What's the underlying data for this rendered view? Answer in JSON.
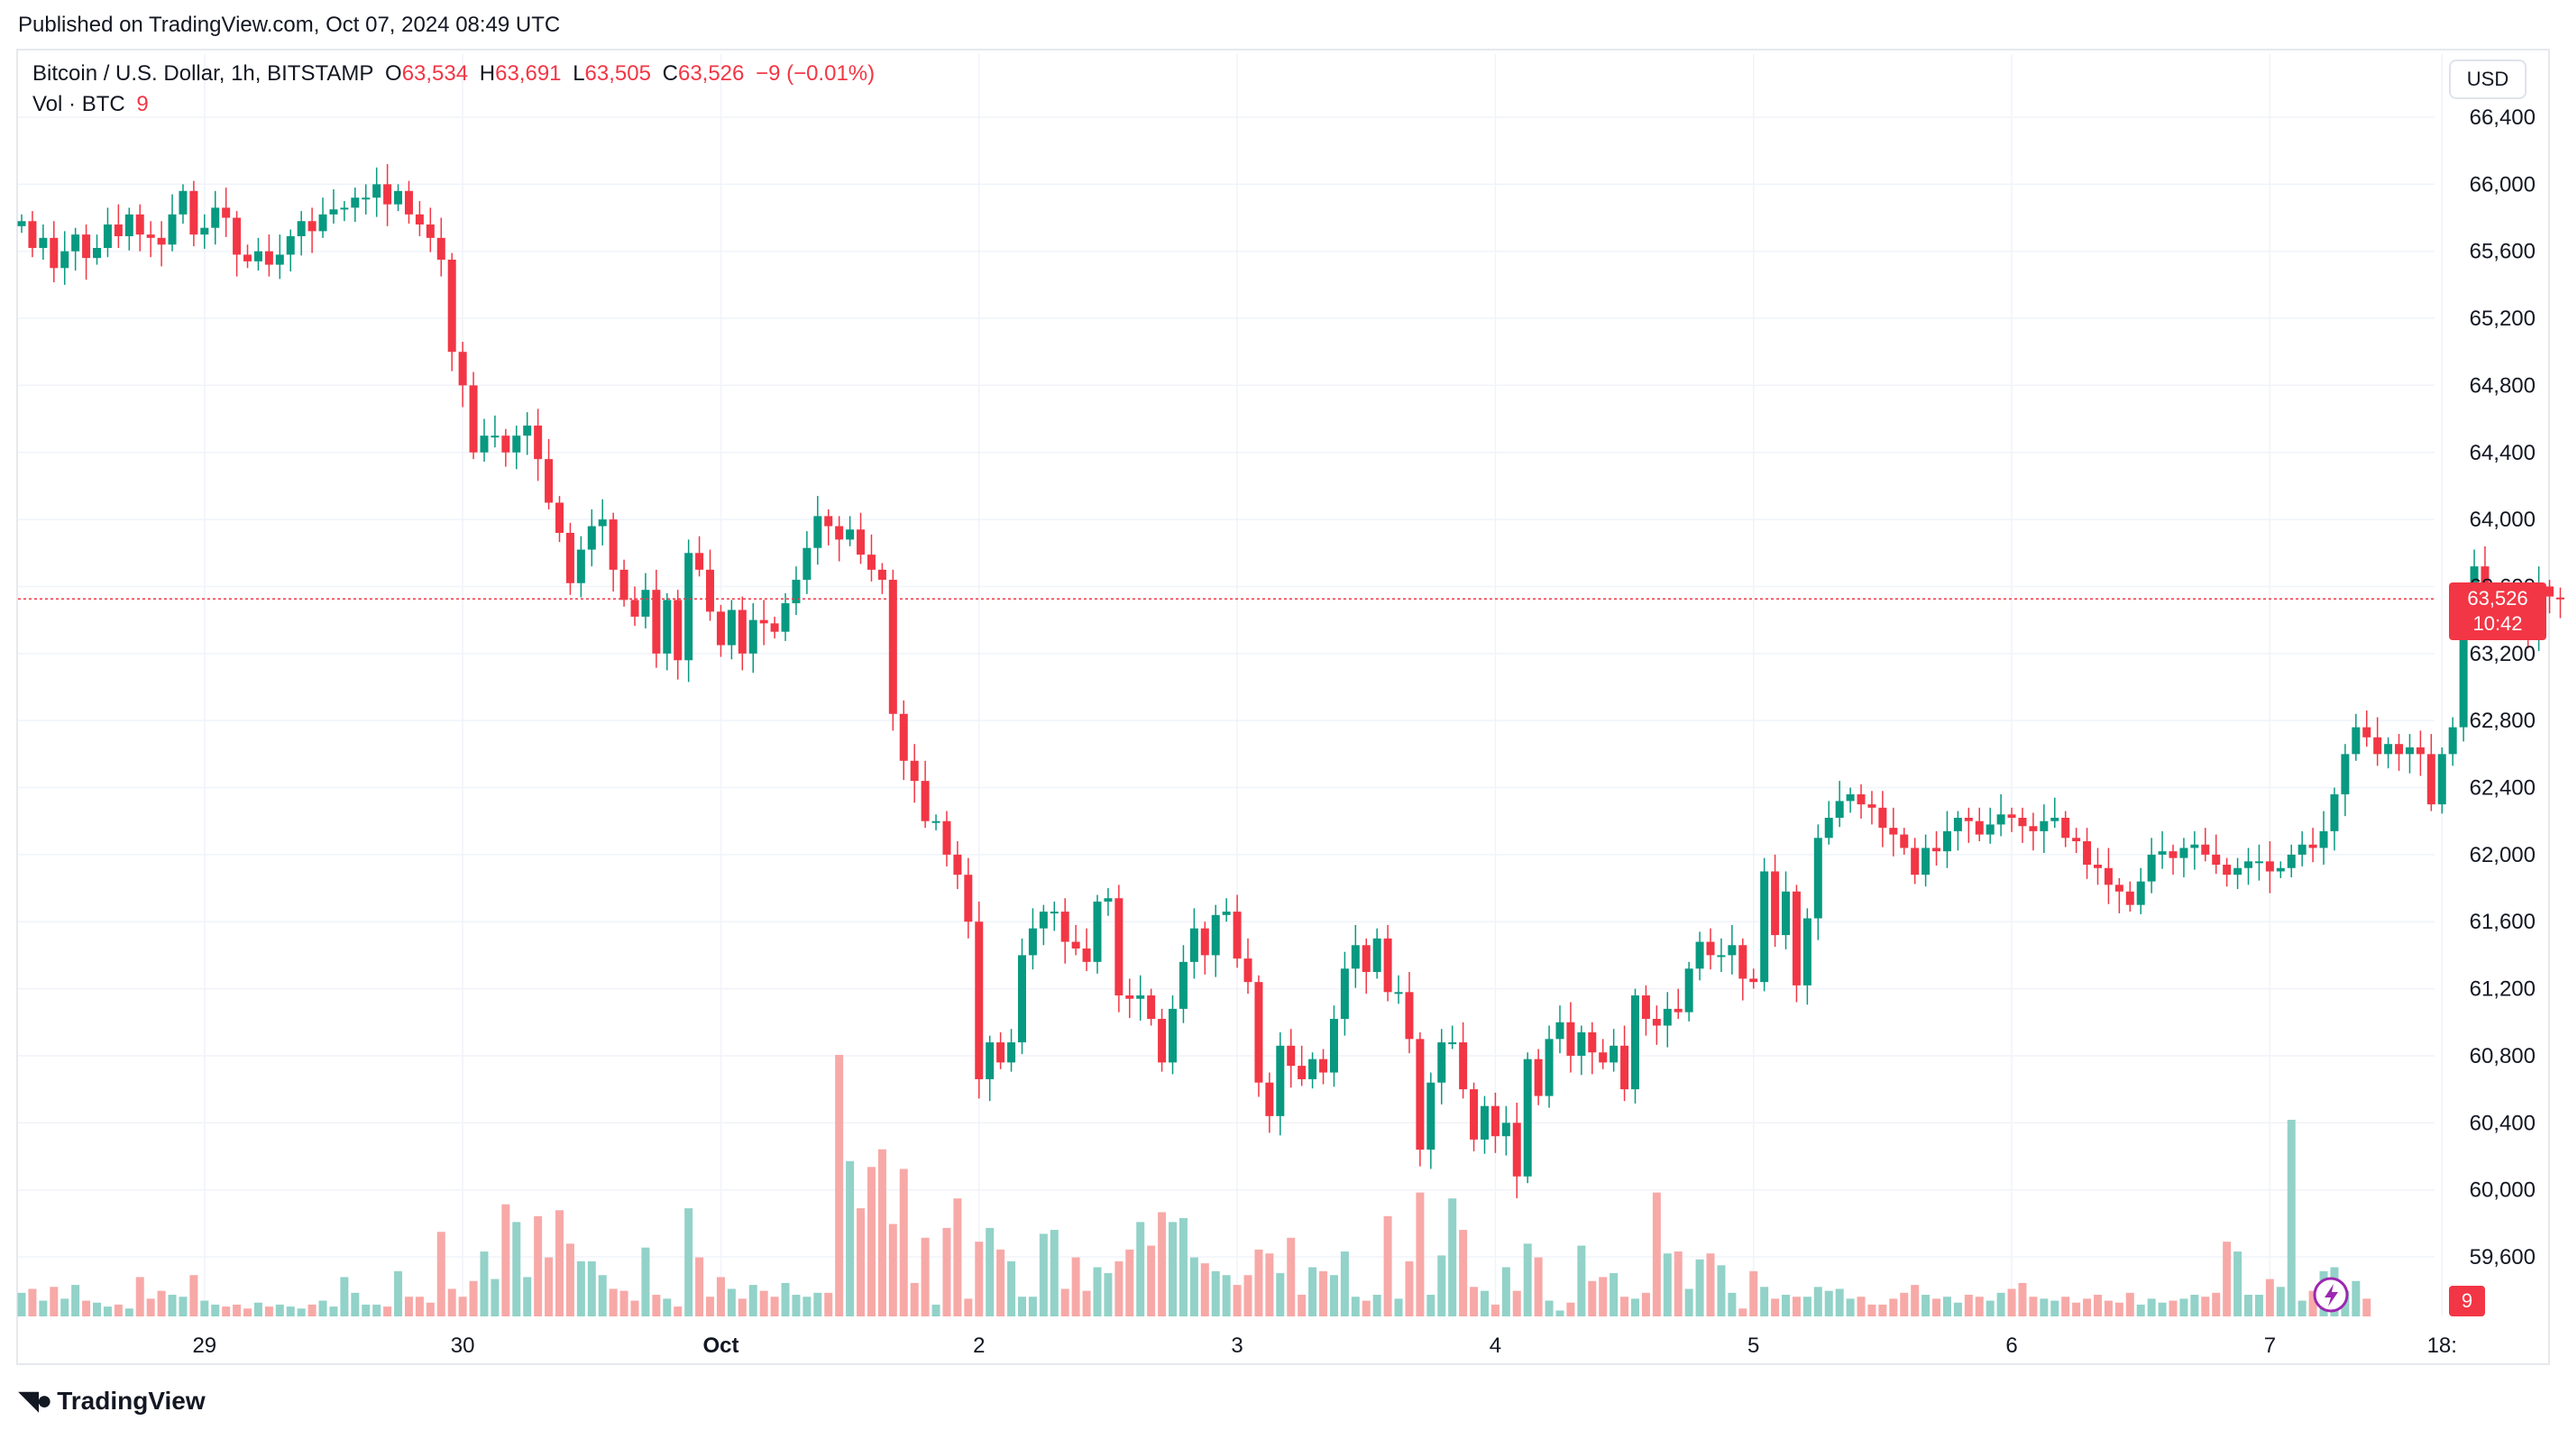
{
  "header": {
    "published": "Published on TradingView.com, Oct 07, 2024 08:49 UTC"
  },
  "legend": {
    "symbol": "Bitcoin / U.S. Dollar, 1h, BITSTAMP",
    "open_label": "O",
    "open": "63,534",
    "high_label": "H",
    "high": "63,691",
    "low_label": "L",
    "low": "63,505",
    "close_label": "C",
    "close": "63,526",
    "change": "−9 (−0.01%)",
    "volume_label": "Vol · BTC",
    "volume": "9"
  },
  "axis": {
    "currency": "USD",
    "price_badge": "63,526",
    "countdown": "10:42",
    "volume_badge": "9"
  },
  "footer": {
    "brand": "TradingView"
  },
  "colors": {
    "up": "#089981",
    "down": "#f23645",
    "up_vol": "#92d2c8",
    "down_vol": "#f7a9a7",
    "grid": "#f0f3fa"
  },
  "chart_data": {
    "type": "candlestick",
    "ylim": [
      59200,
      66600
    ],
    "y_ticks": [
      66400,
      66000,
      65600,
      65200,
      64800,
      64400,
      64000,
      63600,
      63200,
      62800,
      62400,
      62000,
      61600,
      61200,
      60800,
      60400,
      60000,
      59600
    ],
    "y_tick_labels": [
      "66,400",
      "66,000",
      "65,600",
      "65,200",
      "64,800",
      "64,400",
      "64,000",
      "63,600",
      "63,200",
      "62,800",
      "62,400",
      "62,000",
      "61,600",
      "61,200",
      "60,800",
      "60,400",
      "60,000",
      "59,600"
    ],
    "x_tick_labels": [
      {
        "label": "29",
        "bar": 17,
        "bold": false
      },
      {
        "label": "30",
        "bar": 41,
        "bold": false
      },
      {
        "label": "Oct",
        "bar": 65,
        "bold": true
      },
      {
        "label": "2",
        "bar": 89,
        "bold": false
      },
      {
        "label": "3",
        "bar": 113,
        "bold": false
      },
      {
        "label": "4",
        "bar": 137,
        "bold": false
      },
      {
        "label": "5",
        "bar": 161,
        "bold": false
      },
      {
        "label": "6",
        "bar": 185,
        "bold": false
      },
      {
        "label": "7",
        "bar": 209,
        "bold": false
      },
      {
        "label": "18:",
        "bar": 225,
        "bold": false
      }
    ],
    "last_price": 63526,
    "close": [
      65780,
      65620,
      65680,
      65500,
      65600,
      65700,
      65560,
      65620,
      65760,
      65690,
      65820,
      65700,
      65680,
      65640,
      65820,
      65960,
      65700,
      65740,
      65860,
      65800,
      65580,
      65540,
      65600,
      65520,
      65580,
      65690,
      65780,
      65720,
      65820,
      65850,
      65860,
      65920,
      65920,
      66000,
      65880,
      65960,
      65820,
      65760,
      65680,
      65550,
      65000,
      64800,
      64400,
      64500,
      64500,
      64400,
      64500,
      64560,
      64360,
      64100,
      63920,
      63620,
      63820,
      63960,
      64000,
      63700,
      63520,
      63420,
      63580,
      63200,
      63520,
      63160,
      63800,
      63700,
      63450,
      63250,
      63460,
      63200,
      63400,
      63380,
      63330,
      63500,
      63640,
      63830,
      64020,
      63960,
      63880,
      63940,
      63790,
      63700,
      63640,
      62840,
      62560,
      62440,
      62200,
      62200,
      62000,
      61880,
      61600,
      60660,
      60880,
      60760,
      60880,
      61400,
      61560,
      61660,
      61660,
      61480,
      61440,
      61360,
      61720,
      61740,
      61160,
      61140,
      61160,
      61020,
      60760,
      61080,
      61360,
      61560,
      61400,
      61640,
      61660,
      61380,
      61240,
      60640,
      60440,
      60860,
      60740,
      60660,
      60780,
      60700,
      61020,
      61320,
      61460,
      61300,
      61500,
      61180,
      61180,
      60900,
      60240,
      60640,
      60880,
      60880,
      60600,
      60300,
      60500,
      60320,
      60400,
      60080,
      60780,
      60560,
      60900,
      61000,
      60800,
      60940,
      60820,
      60760,
      60860,
      60600,
      61160,
      61020,
      60980,
      61080,
      61060,
      61320,
      61480,
      61400,
      61400,
      61460,
      61260,
      61240,
      61900,
      61520,
      61780,
      61220,
      61620,
      62100,
      62220,
      62320,
      62360,
      62300,
      62280,
      62160,
      62120,
      62040,
      61880,
      62040,
      62020,
      62140,
      62220,
      62200,
      62120,
      62180,
      62240,
      62220,
      62170,
      62140,
      62200,
      62220,
      62100,
      62080,
      61940,
      61920,
      61820,
      61780,
      61700,
      61840,
      62000,
      62020,
      61980,
      62040,
      62060,
      62000,
      61940,
      61880,
      61920,
      61960,
      61960,
      61900,
      61920,
      62000,
      62060,
      62040,
      62140,
      62360,
      62600,
      62760,
      62700,
      62600,
      62660,
      62600,
      62640,
      62600,
      62300,
      62600,
      62760,
      63540,
      63720,
      63540,
      63480,
      63360,
      63440,
      63300,
      63600,
      63540,
      63526
    ],
    "open": [
      65750,
      65780,
      65620,
      65680,
      65500,
      65600,
      65700,
      65560,
      65620,
      65760,
      65690,
      65820,
      65700,
      65680,
      65640,
      65820,
      65960,
      65700,
      65740,
      65860,
      65800,
      65580,
      65540,
      65600,
      65520,
      65580,
      65690,
      65780,
      65720,
      65820,
      65850,
      65860,
      65920,
      65920,
      66000,
      65880,
      65960,
      65820,
      65760,
      65680,
      65550,
      65000,
      64800,
      64400,
      64500,
      64500,
      64400,
      64500,
      64560,
      64360,
      64100,
      63920,
      63620,
      63820,
      63960,
      64000,
      63700,
      63520,
      63420,
      63580,
      63200,
      63520,
      63160,
      63800,
      63700,
      63450,
      63250,
      63460,
      63200,
      63400,
      63380,
      63330,
      63500,
      63640,
      63830,
      64020,
      63960,
      63880,
      63940,
      63790,
      63700,
      63640,
      62840,
      62560,
      62440,
      62200,
      62200,
      62000,
      61880,
      61600,
      60660,
      60880,
      60760,
      60880,
      61400,
      61560,
      61660,
      61660,
      61480,
      61440,
      61360,
      61720,
      61740,
      61160,
      61140,
      61160,
      61020,
      60760,
      61080,
      61360,
      61560,
      61400,
      61640,
      61660,
      61380,
      61240,
      60640,
      60440,
      60860,
      60740,
      60660,
      60780,
      60700,
      61020,
      61320,
      61460,
      61300,
      61500,
      61180,
      61180,
      60900,
      60240,
      60640,
      60880,
      60880,
      60600,
      60300,
      60500,
      60320,
      60400,
      60080,
      60780,
      60560,
      60900,
      61000,
      60800,
      60940,
      60820,
      60760,
      60860,
      60600,
      61160,
      61020,
      60980,
      61080,
      61060,
      61320,
      61480,
      61400,
      61400,
      61460,
      61260,
      61240,
      61900,
      61520,
      61780,
      61220,
      61620,
      62100,
      62220,
      62320,
      62360,
      62300,
      62280,
      62160,
      62120,
      62040,
      61880,
      62040,
      62020,
      62140,
      62220,
      62200,
      62120,
      62180,
      62240,
      62220,
      62170,
      62140,
      62200,
      62220,
      62100,
      62080,
      61940,
      61920,
      61820,
      61780,
      61700,
      61840,
      62000,
      62020,
      61980,
      62040,
      62060,
      62000,
      61940,
      61880,
      61920,
      61960,
      61960,
      61900,
      61920,
      62000,
      62060,
      62040,
      62140,
      62360,
      62600,
      62760,
      62700,
      62600,
      62660,
      62600,
      62640,
      62600,
      62300,
      62600,
      62760,
      63540,
      63720,
      63540,
      63480,
      63360,
      63440,
      63300,
      63600,
      63534
    ],
    "volume_btc": [
      12,
      14,
      8,
      15,
      9,
      16,
      8,
      7,
      5,
      6,
      4,
      20,
      9,
      13,
      11,
      10,
      21,
      8,
      6,
      5,
      6,
      4,
      7,
      5,
      6,
      5,
      4,
      6,
      8,
      5,
      20,
      12,
      6,
      6,
      5,
      23,
      10,
      10,
      7,
      43,
      14,
      10,
      18,
      33,
      19,
      57,
      48,
      20,
      51,
      30,
      54,
      37,
      28,
      28,
      21,
      14,
      13,
      8,
      35,
      11,
      9,
      5,
      55,
      30,
      10,
      20,
      14,
      9,
      16,
      13,
      10,
      17,
      11,
      10,
      12,
      12,
      133,
      79,
      55,
      76,
      85,
      47,
      75,
      17,
      40,
      6,
      45,
      60,
      9,
      38,
      45,
      34,
      28,
      10,
      10,
      42,
      44,
      14,
      30,
      13,
      25,
      22,
      28,
      34,
      48,
      36,
      53,
      48,
      50,
      30,
      27,
      23,
      21,
      16,
      21,
      34,
      32,
      22,
      40,
      11,
      25,
      23,
      21,
      33,
      10,
      8,
      11,
      51,
      9,
      28,
      63,
      11,
      31,
      60,
      44,
      15,
      13,
      6,
      25,
      13,
      37,
      30,
      8,
      3,
      7,
      36,
      18,
      20,
      22,
      10,
      9,
      12,
      63,
      32,
      33,
      14,
      29,
      32,
      26,
      12,
      4,
      23,
      15,
      9,
      11,
      10,
      10,
      15,
      13,
      14,
      9,
      10,
      6,
      6,
      9,
      12,
      16,
      11,
      9,
      10,
      7,
      11,
      10,
      8,
      12,
      14,
      17,
      10,
      9,
      8,
      10,
      7,
      9,
      11,
      8,
      7,
      12,
      6,
      9,
      7,
      8,
      9,
      11,
      10,
      12,
      38,
      33,
      11,
      11,
      19,
      15,
      100,
      8,
      13,
      23,
      25,
      13,
      18,
      9
    ]
  }
}
